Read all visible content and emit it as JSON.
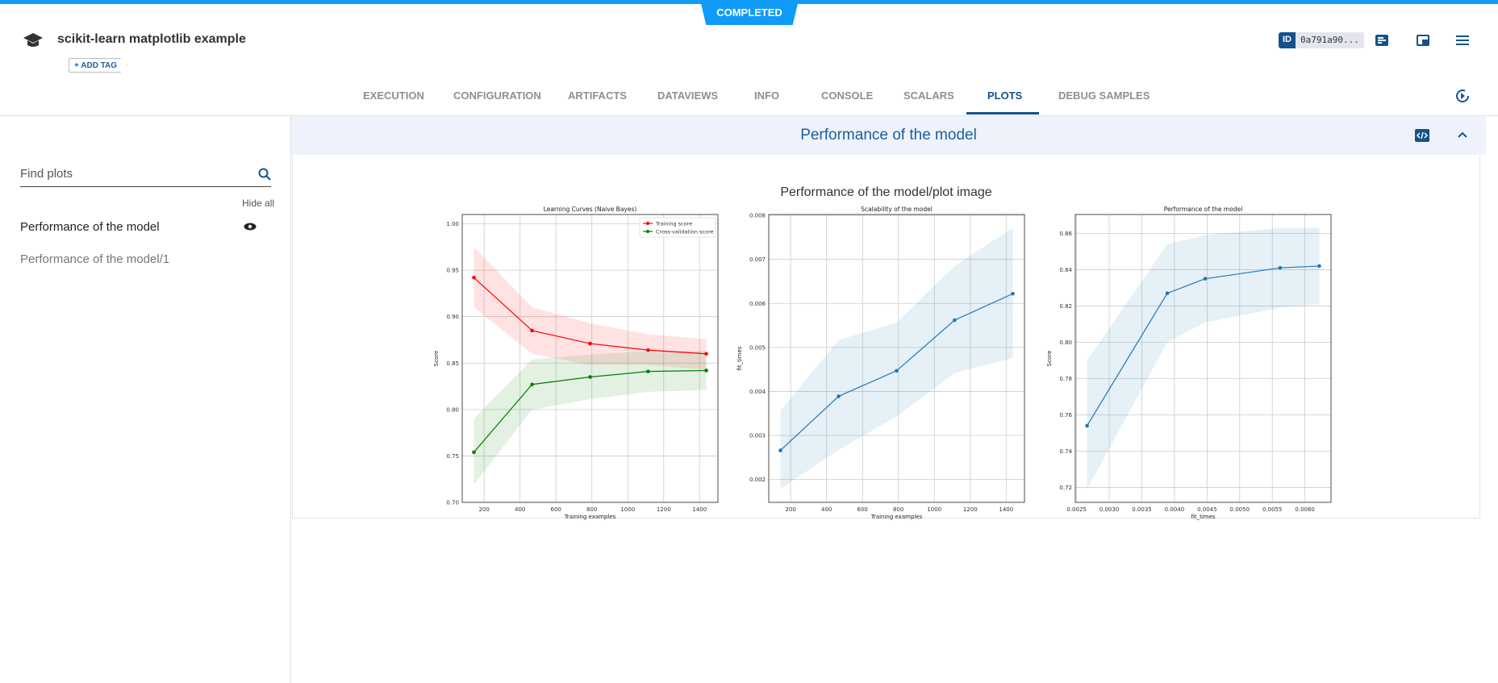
{
  "header": {
    "status": "COMPLETED",
    "title": "scikit-learn matplotlib example",
    "add_tag": "+ ADD TAG",
    "id_label": "ID",
    "id_value": "0a791a90...",
    "accent": "#15528c",
    "status_color": "#0f9bf7"
  },
  "tabs": [
    {
      "label": "EXECUTION"
    },
    {
      "label": "CONFIGURATION"
    },
    {
      "label": "ARTIFACTS"
    },
    {
      "label": "DATAVIEWS"
    },
    {
      "label": "INFO"
    },
    {
      "label": "CONSOLE"
    },
    {
      "label": "SCALARS"
    },
    {
      "label": "PLOTS",
      "active": true
    },
    {
      "label": "DEBUG SAMPLES"
    }
  ],
  "sidebar": {
    "search_placeholder": "Find plots",
    "hide_all": "Hide all",
    "items": [
      {
        "label": "Performance of the model",
        "visible": true
      },
      {
        "label": "Performance of the model/1"
      }
    ]
  },
  "section": {
    "title": "Performance of the model",
    "plot_title": "Performance of the model/plot image"
  },
  "chart_data": [
    {
      "type": "line",
      "title": "Learning Curves (Naive Bayes)",
      "xlabel": "Training examples",
      "ylabel": "Score",
      "xlim": [
        78,
        1502
      ],
      "ylim": [
        0.7,
        1.01
      ],
      "xticks": [
        200,
        400,
        600,
        800,
        1000,
        1200,
        1400
      ],
      "yticks": [
        0.7,
        0.75,
        0.8,
        0.85,
        0.9,
        0.95,
        1.0
      ],
      "ytick_fmt": 2,
      "grid": true,
      "legend": "top-right",
      "x": [
        143,
        467,
        790,
        1113,
        1437
      ],
      "series": [
        {
          "name": "Training score",
          "color": "#ff0000",
          "band_color": "#ff0000",
          "values": [
            0.942,
            0.885,
            0.871,
            0.864,
            0.86
          ],
          "upper": [
            0.975,
            0.91,
            0.893,
            0.881,
            0.876
          ],
          "lower": [
            0.91,
            0.86,
            0.848,
            0.848,
            0.843
          ]
        },
        {
          "name": "Cross-validation score",
          "color": "#008000",
          "band_color": "#008000",
          "values": [
            0.754,
            0.827,
            0.835,
            0.841,
            0.842
          ],
          "upper": [
            0.79,
            0.854,
            0.859,
            0.863,
            0.863
          ],
          "lower": [
            0.719,
            0.8,
            0.811,
            0.819,
            0.821
          ]
        }
      ]
    },
    {
      "type": "line",
      "title": "Scalability of the model",
      "xlabel": "Training examples",
      "ylabel": "fit_times",
      "xlim": [
        78,
        1502
      ],
      "ylim": [
        0.00148,
        0.00802
      ],
      "xticks": [
        200,
        400,
        600,
        800,
        1000,
        1200,
        1400
      ],
      "yticks": [
        0.002,
        0.003,
        0.004,
        0.005,
        0.006,
        0.007,
        0.008
      ],
      "ytick_fmt": 3,
      "grid": true,
      "x": [
        143,
        467,
        790,
        1113,
        1437
      ],
      "series": [
        {
          "color": "#1f77b4",
          "band_color": "#1f77b4",
          "values": [
            0.00266,
            0.00389,
            0.00447,
            0.00562,
            0.00622
          ],
          "upper": [
            0.00356,
            0.00517,
            0.00556,
            0.00685,
            0.00772
          ],
          "lower": [
            0.00179,
            0.00267,
            0.00343,
            0.00442,
            0.00476
          ]
        }
      ]
    },
    {
      "type": "line",
      "title": "Performance of the model",
      "xlabel": "fit_times",
      "ylabel": "Score",
      "xlim": [
        0.00248,
        0.0064
      ],
      "ylim": [
        0.7118,
        0.8704
      ],
      "xticks": [
        0.0025,
        0.003,
        0.0035,
        0.004,
        0.0045,
        0.005,
        0.0055,
        0.006
      ],
      "xtick_fmt": 4,
      "yticks": [
        0.72,
        0.74,
        0.76,
        0.78,
        0.8,
        0.82,
        0.84,
        0.86
      ],
      "ytick_fmt": 2,
      "grid": true,
      "x": [
        0.00266,
        0.00389,
        0.00447,
        0.00562,
        0.00622
      ],
      "series": [
        {
          "color": "#1f77b4",
          "band_color": "#1f77b4",
          "values": [
            0.754,
            0.827,
            0.835,
            0.841,
            0.842
          ],
          "upper": [
            0.79,
            0.854,
            0.859,
            0.863,
            0.863
          ],
          "lower": [
            0.719,
            0.8,
            0.811,
            0.819,
            0.821
          ]
        }
      ]
    }
  ]
}
